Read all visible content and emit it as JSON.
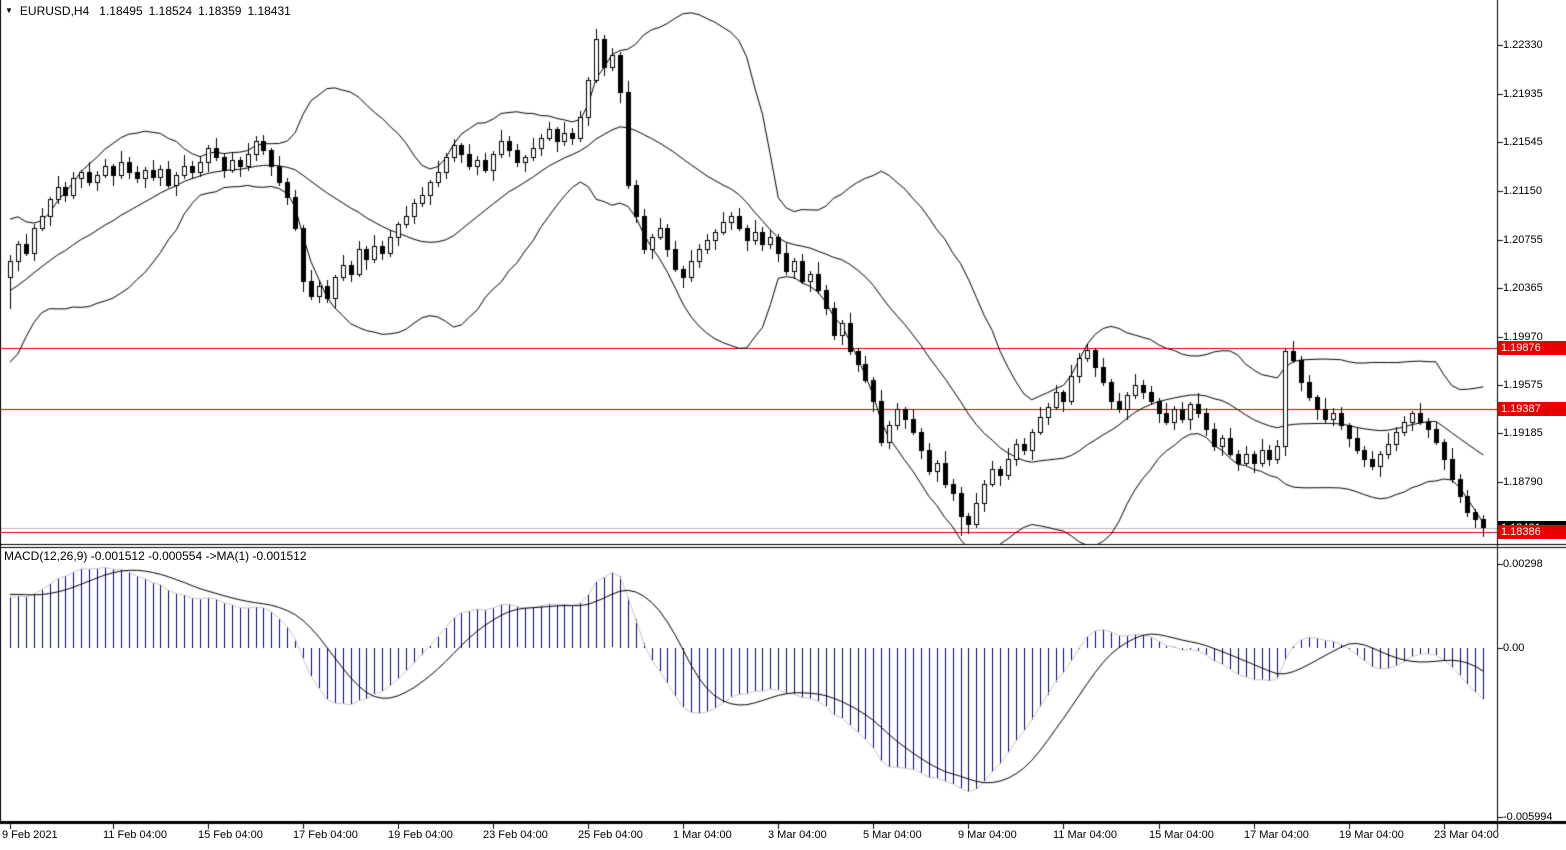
{
  "title_bar": {
    "marker": "▼",
    "symbol_period": "EURUSD,H4",
    "open": "1.18495",
    "high": "1.18524",
    "low": "1.18359",
    "close": "1.18431"
  },
  "price_axis": {
    "ticks": [
      {
        "text": "1.22330",
        "value": 1.2233
      },
      {
        "text": "1.21935",
        "value": 1.21935
      },
      {
        "text": "1.21545",
        "value": 1.21545
      },
      {
        "text": "1.21150",
        "value": 1.2115
      },
      {
        "text": "1.20755",
        "value": 1.20755
      },
      {
        "text": "1.20365",
        "value": 1.20365
      },
      {
        "text": "1.19970",
        "value": 1.1997
      },
      {
        "text": "1.19575",
        "value": 1.19575
      },
      {
        "text": "1.19185",
        "value": 1.19185
      },
      {
        "text": "1.18790",
        "value": 1.1879
      }
    ],
    "badges": [
      {
        "text": "1.18421",
        "value": 1.18421,
        "style": "black",
        "name": "bid-price-badge"
      },
      {
        "text": "1.19876",
        "value": 1.19876,
        "style": "red",
        "name": "hline-badge-1"
      },
      {
        "text": "1.19387",
        "value": 1.19387,
        "style": "red",
        "name": "hline-badge-2"
      },
      {
        "text": "1.18386",
        "value": 1.18386,
        "style": "red",
        "name": "hline-badge-3"
      }
    ]
  },
  "macd_panel": {
    "label": "MACD(12,26,9) -0.001512 -0.000554  ->MA(1) -0.001512",
    "axis_labels": [
      {
        "text": "0.00298",
        "value": 0.00298
      },
      {
        "text": "0.00",
        "value": 0
      },
      {
        "text": "-0.005994",
        "value": -0.005994
      }
    ]
  },
  "colors": {
    "background": "#ffffff",
    "candle_outline": "#000000",
    "bull_fill": "#ffffff",
    "bear_fill": "#000000",
    "bollinger_line": "#000000",
    "red_line": "#d40000",
    "bid_line": "#b8b8b8",
    "badge_red_bg": "#e80000",
    "badge_black_bg": "#000000",
    "badge_text": "#ffffff",
    "macd_histogram": "#000080",
    "macd_main_line": "#c8c8c8",
    "macd_signal_line": "#000000",
    "frame": "#000000",
    "axis_text": "#000000"
  },
  "chart_data": [
    {
      "type": "candlestick",
      "symbol": "EURUSD",
      "timeframe": "H4",
      "y_axis": {
        "top_price": 1.22695,
        "bottom_price": 1.18185
      },
      "x_axis": {
        "labels": [
          {
            "text": "9 Feb 2021",
            "candle": 0
          },
          {
            "text": "11 Feb 04:00",
            "candle": 13
          },
          {
            "text": "15 Feb 04:00",
            "candle": 25
          },
          {
            "text": "17 Feb 04:00",
            "candle": 37
          },
          {
            "text": "19 Feb 04:00",
            "candle": 49
          },
          {
            "text": "23 Feb 04:00",
            "candle": 61
          },
          {
            "text": "25 Feb 04:00",
            "candle": 73
          },
          {
            "text": "1 Mar 04:00",
            "candle": 85
          },
          {
            "text": "3 Mar 04:00",
            "candle": 97
          },
          {
            "text": "5 Mar 04:00",
            "candle": 109
          },
          {
            "text": "9 Mar 04:00",
            "candle": 121
          },
          {
            "text": "11 Mar 04:00",
            "candle": 133
          },
          {
            "text": "15 Mar 04:00",
            "candle": 145
          },
          {
            "text": "17 Mar 04:00",
            "candle": 157
          },
          {
            "text": "19 Mar 04:00",
            "candle": 169
          },
          {
            "text": "23 Mar 04:00",
            "candle": 181
          }
        ]
      },
      "horizontal_lines": [
        {
          "price": 1.19876
        },
        {
          "price": 1.19387
        },
        {
          "price": 1.18386
        }
      ],
      "bid_price": 1.18421,
      "bollinger": {
        "period": 20,
        "deviation": 2
      },
      "first_open": 1.2045,
      "pre_closes": [
        1.198,
        1.196,
        1.1945,
        1.195,
        1.196,
        1.1975,
        1.199,
        1.2005,
        1.202,
        1.201,
        1.2,
        1.1985,
        1.197,
        1.198,
        1.1995,
        1.201,
        1.2025,
        1.204,
        1.203,
        1.2045,
        1.2055,
        1.2045,
        1.2052,
        1.206,
        1.205,
        1.2058,
        1.2052,
        1.206,
        1.2055,
        1.2058
      ],
      "closes": [
        1.2058,
        1.2072,
        1.2065,
        1.2085,
        1.2095,
        1.2108,
        1.2118,
        1.2112,
        1.2125,
        1.213,
        1.2122,
        1.2128,
        1.2135,
        1.2128,
        1.2138,
        1.213,
        1.2125,
        1.2132,
        1.2126,
        1.2133,
        1.212,
        1.2128,
        1.2135,
        1.213,
        1.2138,
        1.215,
        1.2142,
        1.2132,
        1.214,
        1.2135,
        1.2145,
        1.2155,
        1.2148,
        1.2135,
        1.2122,
        1.211,
        1.2085,
        1.2042,
        1.203,
        1.2038,
        1.2028,
        1.2045,
        1.2055,
        1.2048,
        1.2068,
        1.206,
        1.207,
        1.2065,
        1.2078,
        1.2088,
        1.2095,
        1.2105,
        1.2112,
        1.2122,
        1.213,
        1.2142,
        1.2152,
        1.2145,
        1.2135,
        1.214,
        1.2132,
        1.2145,
        1.2155,
        1.2148,
        1.2138,
        1.2142,
        1.215,
        1.2158,
        1.2165,
        1.2155,
        1.2162,
        1.2158,
        1.2175,
        1.2205,
        1.2238,
        1.2215,
        1.2225,
        1.2195,
        1.212,
        1.2095,
        1.2068,
        1.2078,
        1.2085,
        1.2068,
        1.2052,
        1.2045,
        1.2058,
        1.2068,
        1.2075,
        1.2082,
        1.209,
        1.2095,
        1.2085,
        1.2075,
        1.2082,
        1.2072,
        1.2078,
        1.2065,
        1.205,
        1.2058,
        1.2042,
        1.2048,
        1.2035,
        1.202,
        1.1998,
        1.2008,
        1.1985,
        1.1975,
        1.1962,
        1.1945,
        1.1912,
        1.1925,
        1.1938,
        1.193,
        1.192,
        1.1905,
        1.1888,
        1.1895,
        1.1878,
        1.187,
        1.1852,
        1.1845,
        1.1862,
        1.1878,
        1.189,
        1.1885,
        1.1898,
        1.191,
        1.1905,
        1.192,
        1.1932,
        1.194,
        1.1952,
        1.1945,
        1.1965,
        1.198,
        1.1986,
        1.1972,
        1.196,
        1.1945,
        1.1938,
        1.195,
        1.1958,
        1.1952,
        1.1945,
        1.1935,
        1.1928,
        1.1938,
        1.193,
        1.1942,
        1.1935,
        1.1922,
        1.1908,
        1.1915,
        1.1902,
        1.1895,
        1.1902,
        1.1895,
        1.1905,
        1.1898,
        1.1908,
        1.1985,
        1.1978,
        1.196,
        1.1948,
        1.1938,
        1.193,
        1.1935,
        1.1925,
        1.1915,
        1.1905,
        1.1898,
        1.1892,
        1.1902,
        1.191,
        1.192,
        1.1928,
        1.1935,
        1.1928,
        1.1922,
        1.1912,
        1.1898,
        1.1882,
        1.1868,
        1.1855,
        1.18495,
        1.18431
      ],
      "wick_high_pattern": [
        0.0005,
        0.0002,
        0.0008,
        0.0003,
        0.0006,
        0.0002,
        0.0009,
        0.0004
      ],
      "wick_low_pattern": [
        0.0003,
        0.0007,
        0.0002,
        0.0006,
        0.0002,
        0.0008,
        0.0003,
        0.0005
      ],
      "ohlc_overrides": {
        "0": {
          "low": 1.202
        },
        "120": {
          "low": 1.1836
        },
        "186": {
          "open": 1.18495,
          "high": 1.18524,
          "low": 1.18359,
          "close": 1.18431
        }
      }
    },
    {
      "type": "macd_histogram",
      "params": {
        "fast_ema": 12,
        "slow_ema": 26,
        "signal_sma": 9
      },
      "current_values": {
        "macd": -0.001512,
        "prev": -0.000554,
        "signal": -0.001512
      },
      "y_axis": {
        "top_value": 0.00355,
        "bottom_value": -0.00618
      },
      "source": "computed from candlestick closes"
    }
  ]
}
